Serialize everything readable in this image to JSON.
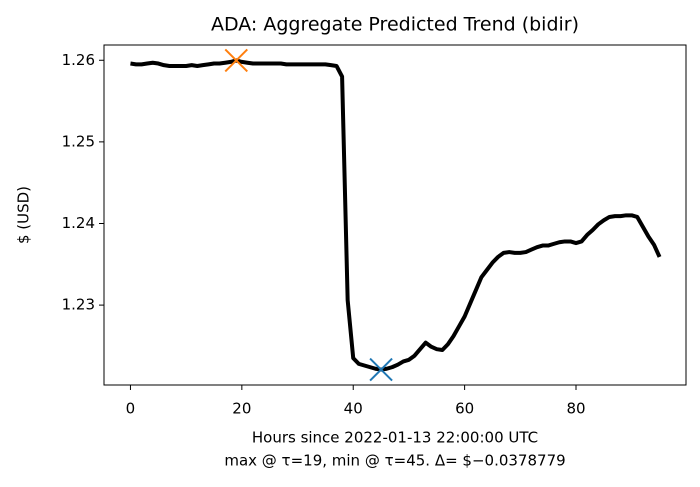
{
  "chart_data": {
    "type": "line",
    "title": "ADA: Aggregate Predicted Trend (bidir)",
    "xlabel": [
      "Hours since 2022-01-13 22:00:00 UTC",
      "max @ τ=19, min @ τ=45. Δ= $−0.0378779"
    ],
    "ylabel": "$ (USD)",
    "x": [
      0,
      1,
      2,
      3,
      4,
      5,
      6,
      7,
      8,
      9,
      10,
      11,
      12,
      13,
      14,
      15,
      16,
      17,
      18,
      19,
      20,
      21,
      22,
      23,
      24,
      25,
      26,
      27,
      28,
      29,
      30,
      31,
      32,
      33,
      34,
      35,
      36,
      37,
      38,
      39,
      40,
      41,
      42,
      43,
      44,
      45,
      46,
      47,
      48,
      49,
      50,
      51,
      52,
      53,
      54,
      55,
      56,
      57,
      58,
      59,
      60,
      61,
      62,
      63,
      64,
      65,
      66,
      67,
      68,
      69,
      70,
      71,
      72,
      73,
      74,
      75,
      76,
      77,
      78,
      79,
      80,
      81,
      82,
      83,
      84,
      85,
      86,
      87,
      88,
      89,
      90,
      91,
      92,
      93,
      94,
      95
    ],
    "series": [
      {
        "color": "#000000",
        "values": [
          1.2596,
          1.2595,
          1.2595,
          1.2596,
          1.2597,
          1.2596,
          1.2594,
          1.2593,
          1.2593,
          1.2593,
          1.2593,
          1.2594,
          1.2593,
          1.2594,
          1.2595,
          1.2596,
          1.2596,
          1.2597,
          1.2598,
          1.25998,
          1.2598,
          1.2597,
          1.2596,
          1.2596,
          1.2596,
          1.2596,
          1.2596,
          1.2596,
          1.2595,
          1.2595,
          1.2595,
          1.2595,
          1.2595,
          1.2595,
          1.2595,
          1.2595,
          1.2594,
          1.2593,
          1.258,
          1.2306,
          1.2235,
          1.2228,
          1.2226,
          1.2224,
          1.2222,
          1.2221,
          1.2222,
          1.2224,
          1.2227,
          1.2231,
          1.2233,
          1.2238,
          1.2246,
          1.2254,
          1.2249,
          1.2246,
          1.2245,
          1.2252,
          1.2262,
          1.2274,
          1.2286,
          1.2302,
          1.2318,
          1.2334,
          1.2343,
          1.2352,
          1.2359,
          1.2364,
          1.2365,
          1.2364,
          1.2364,
          1.2365,
          1.2368,
          1.2371,
          1.2373,
          1.2373,
          1.2375,
          1.2377,
          1.2378,
          1.2378,
          1.2376,
          1.2378,
          1.2386,
          1.2392,
          1.2399,
          1.2404,
          1.2408,
          1.2409,
          1.2409,
          1.241,
          1.241,
          1.2408,
          1.2396,
          1.2384,
          1.2374,
          1.2359
        ]
      }
    ],
    "markers": [
      {
        "x": 19,
        "y": 1.25998,
        "color": "#ff7f0e"
      },
      {
        "x": 45,
        "y": 1.2221,
        "color": "#1f77b4"
      }
    ],
    "xlim": [
      -4.75,
      99.75
    ],
    "xticks": [
      0,
      20,
      40,
      60,
      80
    ],
    "ylim": [
      1.22021,
      1.26187
    ],
    "yticks": [
      1.23,
      1.24,
      1.25,
      1.26
    ]
  }
}
